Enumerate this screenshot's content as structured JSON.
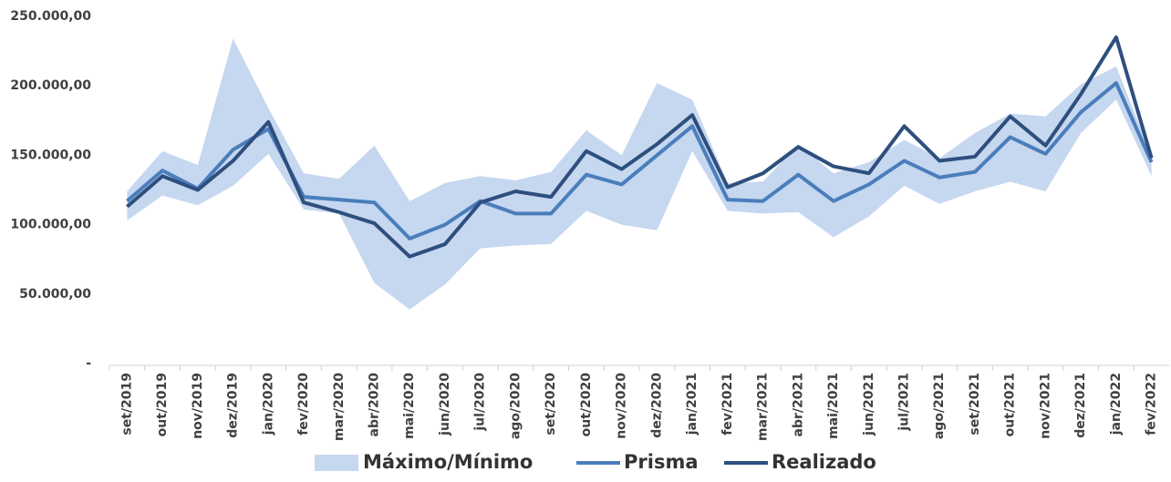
{
  "chart_data": {
    "type": "line",
    "categories": [
      "set/2019",
      "out/2019",
      "nov/2019",
      "dez/2019",
      "jan/2020",
      "fev/2020",
      "mar/2020",
      "abr/2020",
      "mai/2020",
      "jun/2020",
      "jul/2020",
      "ago/2020",
      "set/2020",
      "out/2020",
      "nov/2020",
      "dez/2020",
      "jan/2021",
      "fev/2021",
      "mar/2021",
      "abr/2021",
      "mai/2021",
      "jun/2021",
      "jul/2021",
      "ago/2021",
      "set/2021",
      "out/2021",
      "nov/2021",
      "dez/2021",
      "jan/2022",
      "fev/2022"
    ],
    "band": {
      "name": "Máximo/Mínimo",
      "color": "#c6d7f0",
      "max": [
        124000,
        153000,
        143000,
        234000,
        184000,
        137000,
        133000,
        157000,
        117000,
        130000,
        135000,
        132000,
        138000,
        168000,
        150000,
        202000,
        190000,
        130000,
        131000,
        158000,
        137000,
        145000,
        161000,
        148000,
        166000,
        180000,
        178000,
        201000,
        214000,
        150000
      ],
      "min": [
        103000,
        121000,
        114000,
        128000,
        151000,
        111000,
        108000,
        58000,
        39000,
        57000,
        83000,
        85000,
        86000,
        110000,
        100000,
        96000,
        153000,
        110000,
        108000,
        109000,
        91000,
        106000,
        128000,
        115000,
        124000,
        131000,
        124000,
        166000,
        190000,
        135000
      ]
    },
    "series": [
      {
        "name": "Prisma",
        "color": "#4a7ebb",
        "values": [
          117000,
          139000,
          126000,
          154000,
          169000,
          120000,
          118000,
          116000,
          90000,
          100000,
          117000,
          108000,
          108000,
          136000,
          129000,
          150000,
          171000,
          118000,
          117000,
          136000,
          117000,
          129000,
          146000,
          134000,
          138000,
          163000,
          151000,
          181000,
          202000,
          145000
        ]
      },
      {
        "name": "Realizado",
        "color": "#2e4f7e",
        "values": [
          113000,
          135000,
          125000,
          146000,
          174000,
          116000,
          109000,
          101000,
          77000,
          86000,
          116000,
          124000,
          120000,
          153000,
          140000,
          158000,
          179000,
          127000,
          137000,
          156000,
          142000,
          137000,
          171000,
          146000,
          149000,
          178000,
          157000,
          194000,
          235000,
          148000
        ]
      }
    ],
    "ylim": [
      0,
      250000
    ],
    "yticks": [
      {
        "value": 0,
        "label": "-"
      },
      {
        "value": 50000,
        "label": "50.000,00"
      },
      {
        "value": 100000,
        "label": "100.000,00"
      },
      {
        "value": 150000,
        "label": "150.000,00"
      },
      {
        "value": 200000,
        "label": "200.000,00"
      },
      {
        "value": 250000,
        "label": "250.000,00"
      }
    ]
  }
}
